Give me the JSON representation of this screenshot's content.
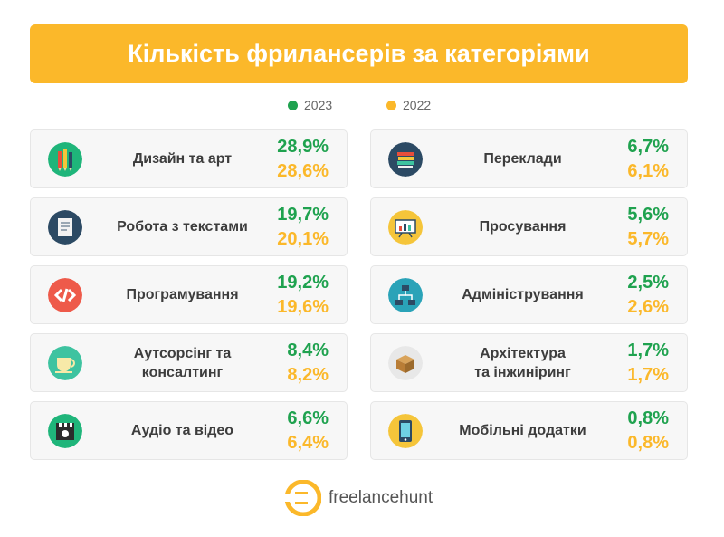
{
  "title": "Кількість фрилансерів за категоріями",
  "legend": [
    {
      "label": "2023",
      "color": "#1fa24f"
    },
    {
      "label": "2022",
      "color": "#fbb82a"
    }
  ],
  "chart_data": {
    "type": "table",
    "title": "Кількість фрилансерів за категоріями",
    "series": [
      {
        "name": "2023",
        "values": [
          28.9,
          19.7,
          19.2,
          8.4,
          6.6,
          6.7,
          5.6,
          2.5,
          1.7,
          0.8
        ]
      },
      {
        "name": "2022",
        "values": [
          28.6,
          20.1,
          19.6,
          8.2,
          6.4,
          6.1,
          5.7,
          2.6,
          1.7,
          0.8
        ]
      }
    ],
    "categories": [
      "Дизайн та арт",
      "Робота з текстами",
      "Програмування",
      "Аутсорсінг та консалтинг",
      "Аудіо та відео",
      "Переклади",
      "Просування",
      "Адміністрування",
      "Архітектура та інжиніринг",
      "Мобільні додатки"
    ]
  },
  "cards": [
    {
      "label": "Дизайн та арт",
      "v2023": "28,9%",
      "v2022": "28,6%",
      "icon": "pencils-icon",
      "icon_bg": "#1fb57a"
    },
    {
      "label": "Робота з текстами",
      "v2023": "19,7%",
      "v2022": "20,1%",
      "icon": "document-icon",
      "icon_bg": "#2c4a64"
    },
    {
      "label": "Програмування",
      "v2023": "19,2%",
      "v2022": "19,6%",
      "icon": "code-icon",
      "icon_bg": "#ee5a4a"
    },
    {
      "label": "Аутсорсінг та\nконсалтинг",
      "v2023": "8,4%",
      "v2022": "8,2%",
      "icon": "tea-cup-icon",
      "icon_bg": "#3ec3a0"
    },
    {
      "label": "Аудіо та відео",
      "v2023": "6,6%",
      "v2022": "6,4%",
      "icon": "clapperboard-icon",
      "icon_bg": "#1fb57a"
    },
    {
      "label": "Переклади",
      "v2023": "6,7%",
      "v2022": "6,1%",
      "icon": "books-icon",
      "icon_bg": "#2c4a64"
    },
    {
      "label": "Просування",
      "v2023": "5,6%",
      "v2022": "5,7%",
      "icon": "presentation-icon",
      "icon_bg": "#f5c53a"
    },
    {
      "label": "Адміністрування",
      "v2023": "2,5%",
      "v2022": "2,6%",
      "icon": "network-icon",
      "icon_bg": "#2aa3b8"
    },
    {
      "label": "Архітектура\nта інжиніринг",
      "v2023": "1,7%",
      "v2022": "1,7%",
      "icon": "box-icon",
      "icon_bg": "#e8e8e8"
    },
    {
      "label": "Мобільні додатки",
      "v2023": "0,8%",
      "v2022": "0,8%",
      "icon": "smartphone-icon",
      "icon_bg": "#f5c53a"
    }
  ],
  "footer": {
    "brand": "freelancehunt",
    "logo_color": "#fbb82a"
  }
}
